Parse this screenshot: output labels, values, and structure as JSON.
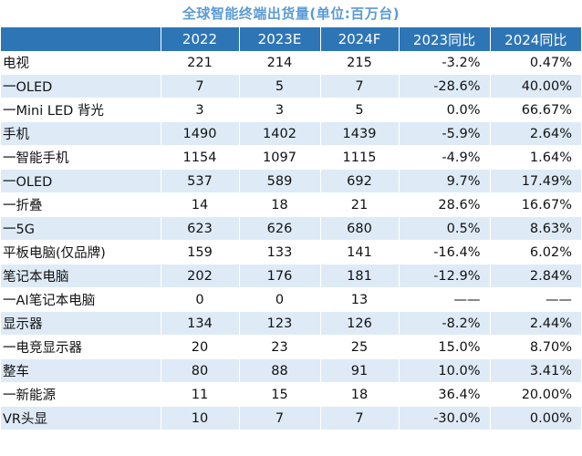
{
  "title": "全球智能终端出货量(单位:百万台)",
  "headers": [
    "",
    "2022",
    "2023E",
    "2024F",
    "2023同比",
    "2024同比"
  ],
  "rows": [
    [
      "电视",
      "221",
      "214",
      "215",
      "-3.2%",
      "0.47%"
    ],
    [
      "一OLED",
      "7",
      "5",
      "7",
      "-28.6%",
      "40.00%"
    ],
    [
      "一Mini LED 背光",
      "3",
      "3",
      "5",
      "0.0%",
      "66.67%"
    ],
    [
      "手机",
      "1490",
      "1402",
      "1439",
      "-5.9%",
      "2.64%"
    ],
    [
      "一智能手机",
      "1154",
      "1097",
      "1115",
      "-4.9%",
      "1.64%"
    ],
    [
      "一OLED",
      "537",
      "589",
      "692",
      "9.7%",
      "17.49%"
    ],
    [
      "一折叠",
      "14",
      "18",
      "21",
      "28.6%",
      "16.67%"
    ],
    [
      "一5G",
      "623",
      "626",
      "680",
      "0.5%",
      "8.63%"
    ],
    [
      "平板电脑(仅品牌)",
      "159",
      "133",
      "141",
      "-16.4%",
      "6.02%"
    ],
    [
      "笔记本电脑",
      "202",
      "176",
      "181",
      "-12.9%",
      "2.84%"
    ],
    [
      "一AI笔记本电脑",
      "0",
      "0",
      "13",
      "——",
      "——"
    ],
    [
      "显示器",
      "134",
      "123",
      "126",
      "-8.2%",
      "2.44%"
    ],
    [
      "一电竞显示器",
      "20",
      "23",
      "25",
      "15.0%",
      "8.70%"
    ],
    [
      "整车",
      "80",
      "88",
      "91",
      "10.0%",
      "3.41%"
    ],
    [
      "一新能源",
      "11",
      "15",
      "18",
      "36.4%",
      "20.00%"
    ],
    [
      "VR头显",
      "10",
      "7",
      "7",
      "-30.0%",
      "0.00%"
    ]
  ],
  "colors": {
    "title": "#5b9bd5",
    "header_bg": "#2e75b6",
    "row_alt_bg": "#deebf7"
  }
}
